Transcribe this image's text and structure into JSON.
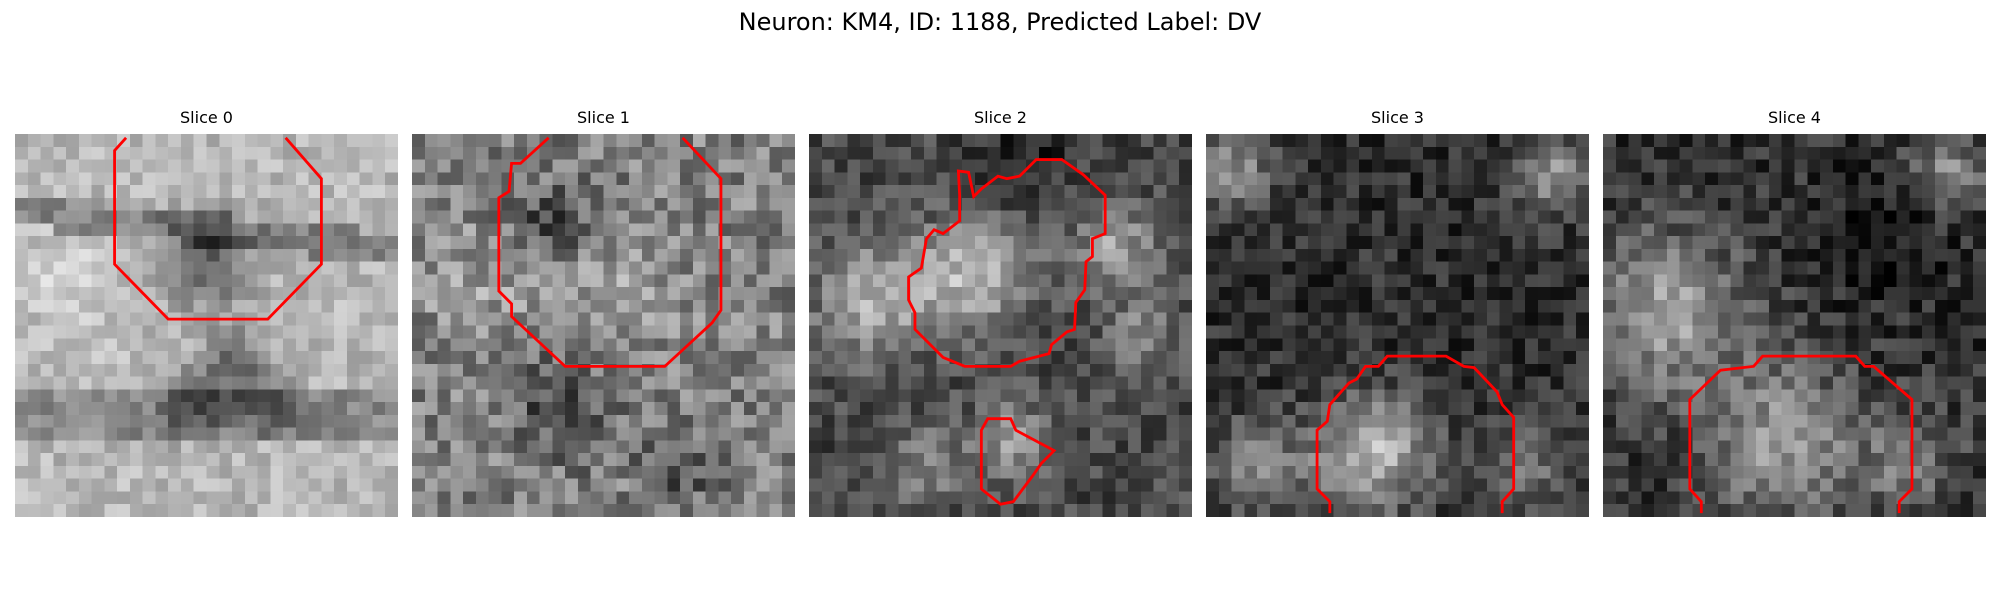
{
  "figure": {
    "title": "Neuron: KM4, ID: 1188, Predicted Label: DV"
  },
  "panels": [
    {
      "title": "Slice 0"
    },
    {
      "title": "Slice 1"
    },
    {
      "title": "Slice 2"
    },
    {
      "title": "Slice 3"
    },
    {
      "title": "Slice 4"
    }
  ],
  "colors": {
    "contour": "#ff0000",
    "background": "#ffffff"
  }
}
